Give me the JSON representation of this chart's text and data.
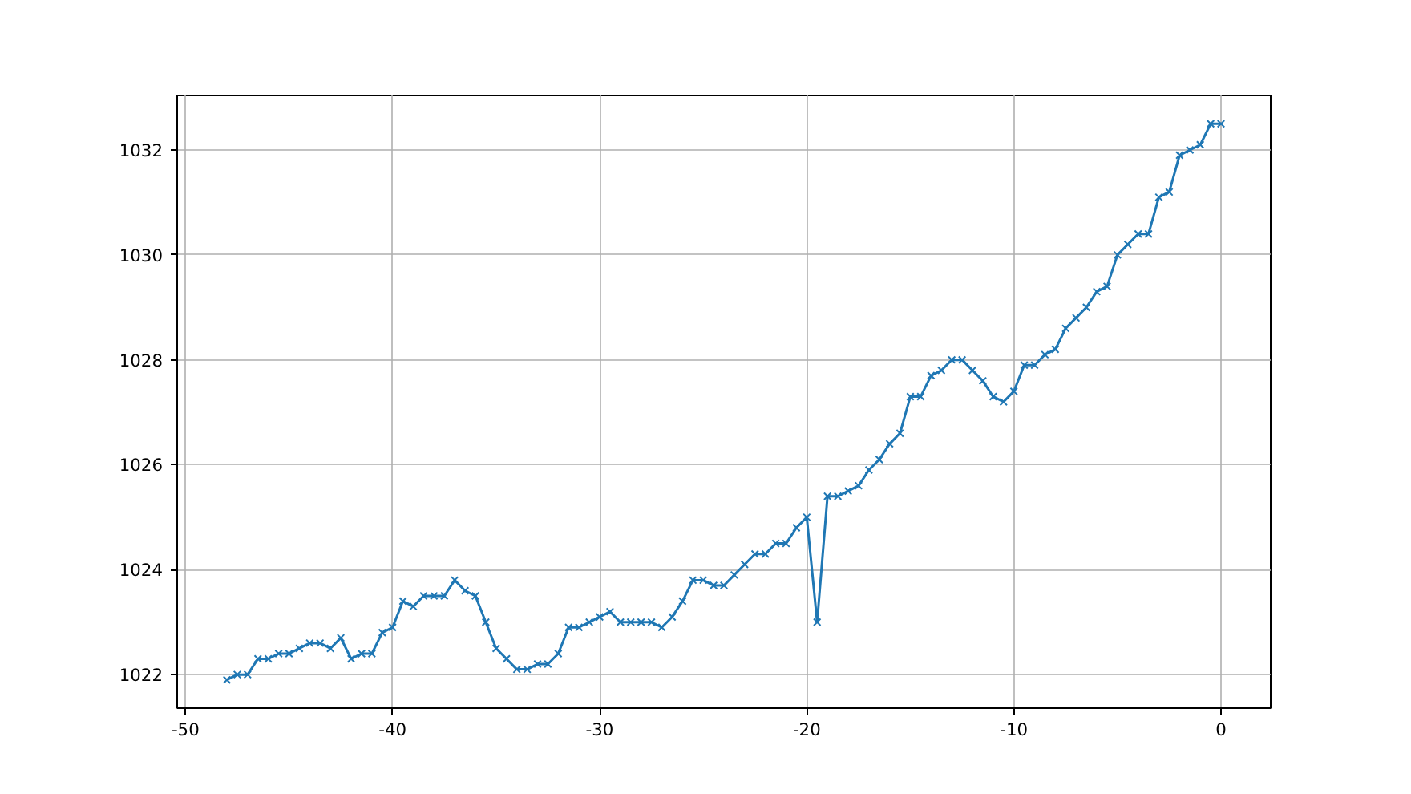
{
  "chart_data": {
    "type": "line",
    "marker": "cross",
    "line_style": "solid",
    "grid": true,
    "xlim": [
      -50.4,
      2.4
    ],
    "ylim": [
      1021.36,
      1033.04
    ],
    "xticks": [
      -50,
      -40,
      -30,
      -20,
      -10,
      0
    ],
    "yticks": [
      1022,
      1024,
      1026,
      1028,
      1030,
      1032
    ],
    "x": [
      -48,
      -47.5,
      -47,
      -46.5,
      -46,
      -45.5,
      -45,
      -44.5,
      -44,
      -43.5,
      -43,
      -42.5,
      -42,
      -41.5,
      -41,
      -40.5,
      -40,
      -39.5,
      -39,
      -38.5,
      -38,
      -37.5,
      -37,
      -36.5,
      -36,
      -35.5,
      -35,
      -34.5,
      -34,
      -33.5,
      -33,
      -32.5,
      -32,
      -31.5,
      -31,
      -30.5,
      -30,
      -29.5,
      -29,
      -28.5,
      -28,
      -27.5,
      -27,
      -26.5,
      -26,
      -25.5,
      -25,
      -24.5,
      -24,
      -23.5,
      -23,
      -22.5,
      -22,
      -21.5,
      -21,
      -20.5,
      -20,
      -19.5,
      -19,
      -18.5,
      -18,
      -17.5,
      -17,
      -16.5,
      -16,
      -15.5,
      -15,
      -14.5,
      -14,
      -13.5,
      -13,
      -12.5,
      -12,
      -11.5,
      -11,
      -10.5,
      -10,
      -9.5,
      -9,
      -8.5,
      -8,
      -7.5,
      -7,
      -6.5,
      -6,
      -5.5,
      -5,
      -4.5,
      -4,
      -3.5,
      -3,
      -2.5,
      -2,
      -1.5,
      -1,
      -0.5,
      0
    ],
    "series": [
      {
        "color": "#1f77b4",
        "values": [
          1021.9,
          1022.0,
          1022.0,
          1022.3,
          1022.3,
          1022.4,
          1022.4,
          1022.5,
          1022.6,
          1022.6,
          1022.5,
          1022.7,
          1022.3,
          1022.4,
          1022.4,
          1022.8,
          1022.9,
          1023.4,
          1023.3,
          1023.5,
          1023.5,
          1023.5,
          1023.8,
          1023.6,
          1023.5,
          1023.0,
          1022.5,
          1022.3,
          1022.1,
          1022.1,
          1022.2,
          1022.2,
          1022.4,
          1022.9,
          1022.9,
          1023.0,
          1023.1,
          1023.2,
          1023.0,
          1023.0,
          1023.0,
          1023.0,
          1022.9,
          1023.1,
          1023.4,
          1023.8,
          1023.8,
          1023.7,
          1023.7,
          1023.9,
          1024.1,
          1024.3,
          1024.3,
          1024.5,
          1024.5,
          1024.8,
          1025.0,
          1023.0,
          1025.4,
          1025.4,
          1025.5,
          1025.6,
          1025.9,
          1026.1,
          1026.4,
          1026.6,
          1027.3,
          1027.3,
          1027.7,
          1027.8,
          1028.0,
          1028.0,
          1027.8,
          1027.6,
          1027.3,
          1027.2,
          1027.4,
          1027.9,
          1027.9,
          1028.1,
          1028.2,
          1028.6,
          1028.8,
          1029.0,
          1029.3,
          1029.4,
          1030.0,
          1030.2,
          1030.4,
          1030.4,
          1031.1,
          1031.2,
          1031.9,
          1032.0,
          1032.1,
          1032.5,
          1032.5
        ]
      }
    ]
  }
}
